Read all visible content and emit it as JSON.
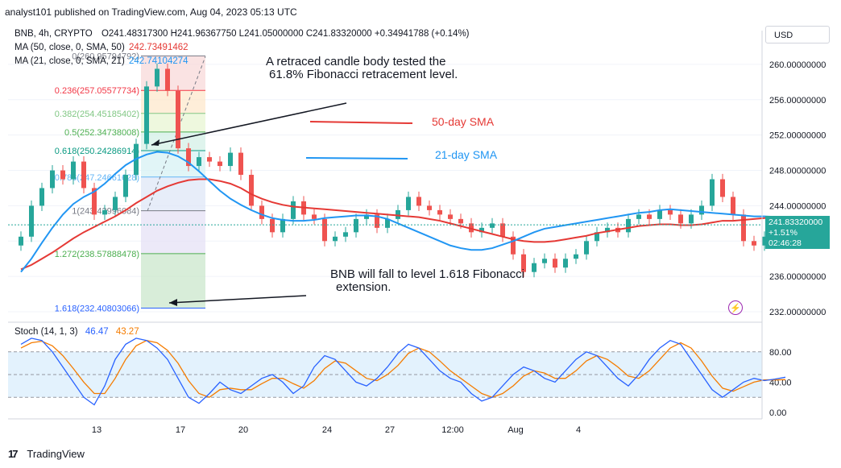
{
  "header": {
    "publisher_line": "analyst101 published on TradingView.com, Aug 04, 2023 05:13 UTC"
  },
  "legend": {
    "symbol": "BNB, 4h, CRYPTO",
    "ohlc": "O241.48317300 H241.96367750 L241.05000000 C241.83320000 +0.34941788 (+0.14%)",
    "ma50_label": "MA (50, close, 0, SMA, 50)",
    "ma50_value": "242.73491462",
    "ma21_label": "MA (21, close, 0, SMA, 21)",
    "ma21_value": "242.74104274",
    "stoch_label": "Stoch (14, 1, 3)",
    "stoch_k": "46.47",
    "stoch_d": "43.27"
  },
  "currency_button": "USD",
  "last_price": {
    "price": "241.83320000",
    "change": "+1.51%",
    "countdown": "02:46:28"
  },
  "colors": {
    "up": "#26a69a",
    "down": "#ef5350",
    "ma50": "#e53935",
    "ma21": "#2196f3",
    "stoch_k": "#2962ff",
    "stoch_d": "#f57c00",
    "stoch_band": "#e3f2fd"
  },
  "annotations": {
    "top_note_line1": "A retraced candle body tested the",
    "top_note_line2": "61.8% Fibonacci retracement level.",
    "ma50_legend": "50-day SMA",
    "ma21_legend": "21-day SMA",
    "bottom_note_line1": "BNB will fall to level 1.618 Fibonacci",
    "bottom_note_line2": "extension."
  },
  "footer_logo": "TradingView",
  "chart_data": {
    "type": "candlestick",
    "symbol": "BNB",
    "timeframe": "4h",
    "price_axis": {
      "ticks": [
        260,
        256,
        252,
        248,
        244,
        240,
        236,
        232
      ],
      "tick_labels": [
        "260.00000000",
        "256.00000000",
        "252.00000000",
        "248.00000000",
        "244.00000000",
        "240.00000000",
        "236.00000000",
        "232.00000000"
      ],
      "range": [
        231,
        262
      ]
    },
    "time_axis": {
      "labels": [
        "13",
        "17",
        "20",
        "24",
        "27",
        "12:00",
        "Aug",
        "4"
      ],
      "bar_index": [
        0,
        8,
        14,
        22,
        28,
        34,
        40,
        46
      ]
    },
    "fibonacci": [
      {
        "level": "0",
        "value": "260.95794792"
      },
      {
        "level": "0.236",
        "value": "257.05577734"
      },
      {
        "level": "0.382",
        "value": "254.45185402"
      },
      {
        "level": "0.5",
        "value": "252.34738008"
      },
      {
        "level": "0.618",
        "value": "250.24286914"
      },
      {
        "level": "0.786",
        "value": "247.24661628"
      },
      {
        "level": "1",
        "value": "243.42996084"
      },
      {
        "level": "1.272",
        "value": "238.57888478"
      },
      {
        "level": "1.618",
        "value": "232.40803066"
      }
    ],
    "close": [
      240.5,
      244.0,
      246.0,
      248.0,
      247.0,
      249.0,
      246.0,
      243.0,
      243.5,
      245.0,
      247.5,
      251.0,
      257.5,
      259.5,
      257.0,
      250.5,
      248.5,
      249.5,
      249.0,
      248.5,
      250.0,
      247.5,
      244.0,
      242.5,
      241.0,
      242.5,
      244.5,
      243.0,
      242.5,
      240.0,
      240.5,
      241.0,
      242.5,
      243.0,
      241.5,
      242.5,
      243.5,
      245.0,
      244.0,
      243.5,
      243.0,
      242.5,
      242.0,
      241.0,
      241.5,
      242.0,
      240.5,
      238.5,
      236.5,
      237.5,
      238.0,
      237.0,
      238.0,
      238.5,
      240.0,
      241.0,
      241.5,
      241.0,
      242.5,
      243.0,
      242.5,
      243.5,
      243.0,
      242.0,
      243.0,
      244.0,
      247.0,
      245.0,
      243.0,
      240.0,
      239.5,
      240.5,
      241.5,
      241.8
    ],
    "ma50": [
      236.8,
      237.3,
      238.0,
      238.7,
      239.5,
      240.3,
      241.0,
      241.6,
      242.2,
      242.8,
      243.5,
      244.3,
      245.0,
      245.7,
      246.2,
      246.6,
      246.9,
      247.0,
      247.0,
      246.8,
      246.5,
      246.0,
      245.3,
      244.8,
      244.4,
      244.1,
      243.9,
      243.8,
      243.7,
      243.6,
      243.5,
      243.4,
      243.3,
      243.2,
      243.1,
      243.0,
      242.9,
      242.8,
      242.7,
      242.5,
      242.3,
      242.0,
      241.7,
      241.4,
      241.1,
      240.8,
      240.5,
      240.2,
      240.0,
      239.9,
      239.9,
      240.0,
      240.2,
      240.4,
      240.6,
      240.9,
      241.1,
      241.3,
      241.5,
      241.7,
      241.8,
      241.9,
      241.9,
      241.8,
      241.8,
      241.9,
      242.1,
      242.3,
      242.3,
      242.4,
      242.5,
      242.6,
      242.7,
      242.73
    ],
    "ma21": [
      236.5,
      238.0,
      239.8,
      241.5,
      243.0,
      244.2,
      245.0,
      245.6,
      246.5,
      247.6,
      248.6,
      249.3,
      249.8,
      250.1,
      250.0,
      249.6,
      248.9,
      247.9,
      246.8,
      245.7,
      244.8,
      244.1,
      243.5,
      243.0,
      242.6,
      242.4,
      242.3,
      242.3,
      242.4,
      242.6,
      242.7,
      242.8,
      242.9,
      242.9,
      242.8,
      242.5,
      242.0,
      241.5,
      241.0,
      240.5,
      240.0,
      239.5,
      239.2,
      239.0,
      239.0,
      239.2,
      239.6,
      240.0,
      240.5,
      241.0,
      241.4,
      241.6,
      241.8,
      242.0,
      242.2,
      242.4,
      242.6,
      242.8,
      243.0,
      243.2,
      243.3,
      243.5,
      243.6,
      243.5,
      243.4,
      243.3,
      243.2,
      243.1,
      243.0,
      242.9,
      242.8,
      242.8,
      242.74,
      242.74
    ],
    "stochastic": {
      "axis_ticks": [
        80,
        40,
        0
      ],
      "tick_labels": [
        "80.00",
        "40.00",
        "0.00"
      ],
      "band": [
        20,
        80
      ],
      "k": [
        90,
        98,
        95,
        80,
        60,
        40,
        20,
        10,
        35,
        70,
        90,
        98,
        95,
        85,
        70,
        45,
        20,
        12,
        25,
        40,
        30,
        25,
        35,
        45,
        50,
        40,
        25,
        35,
        60,
        75,
        70,
        55,
        40,
        35,
        45,
        60,
        78,
        90,
        85,
        70,
        55,
        45,
        40,
        25,
        15,
        20,
        35,
        50,
        60,
        55,
        45,
        40,
        55,
        70,
        80,
        75,
        60,
        45,
        35,
        50,
        70,
        85,
        95,
        90,
        70,
        50,
        30,
        20,
        30,
        40,
        45,
        42,
        44,
        46.47
      ],
      "d": [
        85,
        92,
        94,
        88,
        75,
        58,
        40,
        25,
        25,
        45,
        70,
        88,
        95,
        92,
        82,
        65,
        42,
        25,
        20,
        30,
        32,
        30,
        30,
        38,
        45,
        45,
        38,
        32,
        42,
        58,
        68,
        65,
        55,
        45,
        42,
        50,
        62,
        78,
        85,
        80,
        68,
        55,
        45,
        35,
        25,
        20,
        25,
        35,
        48,
        55,
        52,
        45,
        45,
        55,
        68,
        75,
        70,
        60,
        48,
        45,
        55,
        70,
        85,
        92,
        85,
        68,
        48,
        32,
        28,
        34,
        40,
        43,
        43,
        43.27
      ]
    }
  }
}
